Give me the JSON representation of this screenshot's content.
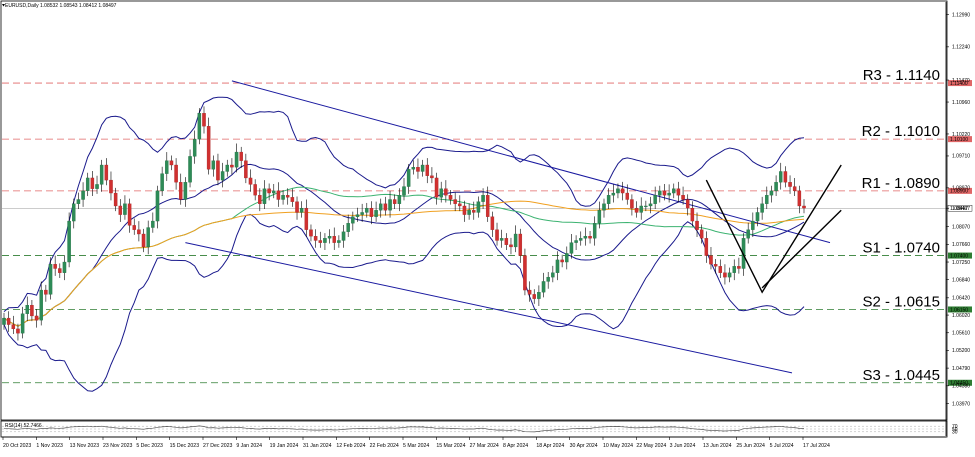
{
  "chart_data": {
    "type": "candlestick",
    "symbol_header": "EURUSD,Daily 1.08532 1.08543 1.08412 1.08497",
    "price_axis": {
      "ylim": [
        1.0361,
        1.1328
      ],
      "ticks": [
        "1.12990",
        "1.12240",
        "1.11470",
        "1.10960",
        "1.10220",
        "1.09710",
        "1.08970",
        "1.08497",
        "1.08070",
        "1.07660",
        "1.07250",
        "1.06840",
        "1.06420",
        "1.06020",
        "1.05610",
        "1.05200",
        "1.04790",
        "1.04380",
        "1.03970"
      ]
    },
    "x_axis": {
      "ticks": [
        "20 Oct 2023",
        "1 Nov 2023",
        "13 Nov 2023",
        "23 Nov 2023",
        "5 Dec 2023",
        "15 Dec 2023",
        "27 Dec 2023",
        "9 Jan 2024",
        "19 Jan 2024",
        "31 Jan 2024",
        "12 Feb 2024",
        "22 Feb 2024",
        "5 Mar 2024",
        "15 Mar 2024",
        "27 Mar 2024",
        "8 Apr 2024",
        "18 Apr 2024",
        "30 Apr 2024",
        "10 May 2024",
        "22 May 2024",
        "3 Jun 2024",
        "13 Jun 2024",
        "25 Jun 2024",
        "5 Jul 2024",
        "17 Jul 2024"
      ]
    },
    "levels": [
      {
        "label": "R3 - 1.1140",
        "price": 1.114,
        "tag": "1.11400",
        "color": "#e06666",
        "style": "dashed"
      },
      {
        "label": "R2 - 1.1010",
        "price": 1.101,
        "tag": "1.10100",
        "color": "#e06666",
        "style": "dashed"
      },
      {
        "label": "R1 - 1.0890",
        "price": 1.089,
        "tag": "1.08900",
        "color": "#e06666",
        "style": "dashed"
      },
      {
        "label": "S1 - 1.0740",
        "price": 1.074,
        "tag": "1.07400",
        "color": "#2e7d32",
        "style": "dashed"
      },
      {
        "label": "S2 - 1.0615",
        "price": 1.0615,
        "tag": "1.06150",
        "color": "#2e7d32",
        "style": "dashed"
      },
      {
        "label": "S3 - 1.0445",
        "price": 1.0445,
        "tag": "1.04450",
        "color": "#2e7d32",
        "style": "dashed"
      }
    ],
    "current_price": {
      "value": 1.08497,
      "label": "1.08497"
    },
    "closes": [
      1.0595,
      1.058,
      1.057,
      1.056,
      1.0605,
      1.0625,
      1.06,
      1.059,
      1.066,
      1.065,
      1.072,
      1.071,
      1.07,
      1.0725,
      1.082,
      1.086,
      1.087,
      1.089,
      1.092,
      1.0895,
      1.0905,
      1.095,
      1.0915,
      1.0885,
      1.0855,
      1.0835,
      1.086,
      1.081,
      1.08,
      1.079,
      1.076,
      1.0805,
      1.082,
      1.089,
      1.093,
      1.096,
      1.095,
      1.091,
      1.087,
      1.091,
      1.097,
      1.101,
      1.107,
      1.104,
      1.094,
      1.096,
      1.0915,
      1.0935,
      1.095,
      1.0945,
      1.098,
      1.096,
      1.092,
      1.0905,
      1.088,
      1.086,
      1.0895,
      1.0885,
      1.089,
      1.087,
      1.088,
      1.0875,
      1.0865,
      1.084,
      1.085,
      1.08,
      1.0785,
      1.0775,
      1.077,
      1.078,
      1.0785,
      1.077,
      1.0775,
      1.0795,
      1.0815,
      1.083,
      1.0835,
      1.084,
      1.085,
      1.083,
      1.0845,
      1.086,
      1.0845,
      1.087,
      1.086,
      1.088,
      1.09,
      1.094,
      1.0945,
      1.0935,
      1.095,
      1.0925,
      1.092,
      1.0875,
      1.0895,
      1.088,
      1.087,
      1.086,
      1.0855,
      1.0835,
      1.0845,
      1.084,
      1.0865,
      1.088,
      1.083,
      1.08,
      1.0775,
      1.078,
      1.0765,
      1.076,
      1.079,
      1.074,
      1.066,
      1.065,
      1.064,
      1.0655,
      1.068,
      1.069,
      1.07,
      1.073,
      1.0725,
      1.0745,
      1.077,
      1.0775,
      1.078,
      1.0785,
      1.078,
      1.0815,
      1.0845,
      1.086,
      1.088,
      1.0885,
      1.0895,
      1.0885,
      1.087,
      1.085,
      1.084,
      1.0855,
      1.0855,
      1.086,
      1.088,
      1.089,
      1.088,
      1.0885,
      1.0895,
      1.088,
      1.087,
      1.085,
      1.082,
      1.08,
      1.078,
      1.074,
      1.072,
      1.0715,
      1.07,
      1.069,
      1.07,
      1.0715,
      1.071,
      1.078,
      1.08,
      1.082,
      1.084,
      1.086,
      1.088,
      1.089,
      1.091,
      1.0935,
      1.091,
      1.09,
      1.089,
      1.0855,
      1.085
    ],
    "rsi": {
      "label": "RSI(14) 52.7466",
      "ylim": [
        0,
        100
      ],
      "levels": [
        {
          "value": 70,
          "label": "70"
        },
        {
          "value": 50,
          "label": "50"
        },
        {
          "value": 30,
          "label": "30"
        }
      ],
      "values": [
        55,
        52,
        50,
        48,
        52,
        55,
        50,
        48,
        55,
        53,
        58,
        56,
        55,
        57,
        63,
        66,
        67,
        68,
        70,
        66,
        67,
        70,
        65,
        62,
        58,
        55,
        58,
        53,
        52,
        51,
        48,
        54,
        56,
        62,
        65,
        68,
        66,
        62,
        58,
        61,
        65,
        68,
        72,
        68,
        58,
        60,
        56,
        58,
        60,
        59,
        62,
        60,
        56,
        54,
        51,
        49,
        54,
        53,
        54,
        51,
        53,
        52,
        51,
        48,
        50,
        44,
        43,
        42,
        42,
        44,
        45,
        43,
        44,
        47,
        50,
        52,
        53,
        54,
        55,
        52,
        55,
        57,
        55,
        58,
        56,
        58,
        61,
        65,
        65,
        64,
        65,
        61,
        60,
        55,
        57,
        56,
        54,
        53,
        52,
        49,
        51,
        50,
        54,
        56,
        49,
        45,
        42,
        43,
        41,
        40,
        45,
        38,
        31,
        30,
        29,
        33,
        38,
        40,
        42,
        46,
        45,
        48,
        52,
        53,
        54,
        55,
        54,
        59,
        63,
        65,
        67,
        67,
        68,
        66,
        63,
        60,
        58,
        60,
        60,
        61,
        64,
        65,
        63,
        64,
        65,
        62,
        60,
        57,
        52,
        49,
        47,
        42,
        40,
        39,
        37,
        36,
        38,
        41,
        40,
        52,
        55,
        58,
        60,
        62,
        64,
        65,
        67,
        69,
        64,
        62,
        60,
        54,
        53
      ]
    }
  }
}
